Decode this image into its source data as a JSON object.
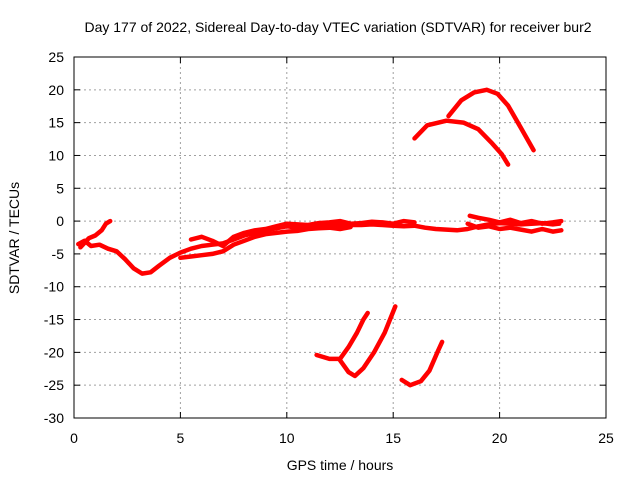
{
  "chart_data": {
    "type": "scatter",
    "title": "Day 177 of 2022, Sidereal Day-to-day VTEC variation (SDTVAR) for receiver bur2",
    "xlabel": "GPS time / hours",
    "ylabel": "SDTVAR / TECUs",
    "xlim": [
      0,
      25
    ],
    "ylim": [
      -30,
      25
    ],
    "xticks": [
      0,
      5,
      10,
      15,
      20,
      25
    ],
    "yticks": [
      25,
      20,
      15,
      10,
      5,
      0,
      -5,
      -10,
      -15,
      -20,
      -25,
      -30
    ],
    "grid": true,
    "legend": "none",
    "color": "#ff0000",
    "series": [
      {
        "name": "main-trace",
        "points": [
          [
            0.2,
            -3.5
          ],
          [
            0.5,
            -3.0
          ],
          [
            0.8,
            -3.8
          ],
          [
            1.2,
            -3.6
          ],
          [
            1.6,
            -4.2
          ],
          [
            2.0,
            -4.6
          ],
          [
            2.4,
            -5.8
          ],
          [
            2.8,
            -7.2
          ],
          [
            3.2,
            -8.0
          ],
          [
            3.6,
            -7.8
          ],
          [
            4.0,
            -6.8
          ],
          [
            4.5,
            -5.6
          ],
          [
            5.0,
            -4.8
          ],
          [
            5.5,
            -4.2
          ],
          [
            6.0,
            -3.8
          ],
          [
            6.5,
            -3.6
          ],
          [
            7.0,
            -3.4
          ],
          [
            7.5,
            -2.8
          ],
          [
            8.0,
            -2.2
          ],
          [
            8.5,
            -1.8
          ],
          [
            9.0,
            -1.4
          ],
          [
            9.5,
            -1.1
          ],
          [
            10.0,
            -0.8
          ],
          [
            10.5,
            -1.0
          ],
          [
            11.0,
            -0.9
          ],
          [
            11.5,
            -0.8
          ],
          [
            12.0,
            -0.7
          ],
          [
            12.5,
            -0.7
          ],
          [
            13.0,
            -0.6
          ],
          [
            13.5,
            -0.6
          ],
          [
            14.0,
            -0.5
          ],
          [
            14.5,
            -0.6
          ],
          [
            15.0,
            -0.7
          ],
          [
            15.5,
            -0.8
          ],
          [
            16.0,
            -0.7
          ],
          [
            16.5,
            -1.0
          ],
          [
            17.0,
            -1.2
          ],
          [
            17.5,
            -1.3
          ],
          [
            18.0,
            -1.4
          ],
          [
            18.5,
            -1.2
          ],
          [
            19.0,
            -0.8
          ],
          [
            19.5,
            -0.5
          ],
          [
            20.0,
            -0.3
          ],
          [
            20.5,
            -0.4
          ],
          [
            21.0,
            -0.5
          ],
          [
            21.5,
            -0.4
          ],
          [
            22.0,
            -0.3
          ],
          [
            22.5,
            -0.5
          ],
          [
            22.8,
            -0.4
          ]
        ]
      },
      {
        "name": "main-trace-lower",
        "points": [
          [
            5.0,
            -5.6
          ],
          [
            5.5,
            -5.4
          ],
          [
            6.0,
            -5.2
          ],
          [
            6.5,
            -5.0
          ],
          [
            7.0,
            -4.6
          ],
          [
            7.5,
            -3.6
          ],
          [
            8.0,
            -3.0
          ],
          [
            8.5,
            -2.4
          ],
          [
            9.0,
            -2.0
          ],
          [
            9.5,
            -1.8
          ],
          [
            10.0,
            -1.6
          ],
          [
            10.5,
            -1.5
          ],
          [
            11.0,
            -1.2
          ],
          [
            11.5,
            -1.1
          ],
          [
            12.0,
            -1.0
          ],
          [
            12.5,
            -1.2
          ],
          [
            13.0,
            -0.9
          ]
        ]
      },
      {
        "name": "main-trace-upper",
        "points": [
          [
            5.5,
            -2.8
          ],
          [
            6.0,
            -2.4
          ],
          [
            6.5,
            -3.0
          ],
          [
            7.0,
            -3.8
          ],
          [
            7.5,
            -2.4
          ],
          [
            8.0,
            -1.8
          ],
          [
            8.5,
            -1.4
          ],
          [
            9.0,
            -1.2
          ],
          [
            9.5,
            -0.8
          ],
          [
            10.0,
            -0.4
          ],
          [
            10.5,
            -0.5
          ],
          [
            11.0,
            -0.6
          ],
          [
            11.5,
            -0.3
          ],
          [
            12.0,
            -0.2
          ],
          [
            12.5,
            0.0
          ],
          [
            13.0,
            -0.4
          ],
          [
            13.5,
            -0.3
          ],
          [
            14.0,
            -0.1
          ],
          [
            14.5,
            -0.2
          ],
          [
            15.0,
            -0.4
          ],
          [
            15.5,
            0.0
          ],
          [
            16.0,
            -0.2
          ]
        ]
      },
      {
        "name": "end-trace-low",
        "points": [
          [
            18.5,
            -0.4
          ],
          [
            19.0,
            -1.0
          ],
          [
            19.5,
            -0.8
          ],
          [
            20.0,
            -1.2
          ],
          [
            20.5,
            -1.0
          ],
          [
            21.0,
            -1.3
          ],
          [
            21.5,
            -1.6
          ],
          [
            22.0,
            -1.2
          ],
          [
            22.5,
            -1.6
          ],
          [
            22.9,
            -1.4
          ]
        ]
      },
      {
        "name": "end-trace-high",
        "points": [
          [
            18.6,
            0.8
          ],
          [
            19.0,
            0.5
          ],
          [
            19.5,
            0.2
          ],
          [
            20.0,
            -0.2
          ],
          [
            20.5,
            0.2
          ],
          [
            21.0,
            -0.3
          ],
          [
            21.5,
            0.0
          ],
          [
            22.0,
            -0.4
          ],
          [
            22.5,
            -0.2
          ],
          [
            22.9,
            0.0
          ]
        ]
      },
      {
        "name": "start-spike",
        "points": [
          [
            0.3,
            -4.0
          ],
          [
            0.7,
            -2.6
          ],
          [
            1.0,
            -2.2
          ],
          [
            1.3,
            -1.4
          ],
          [
            1.5,
            -0.4
          ],
          [
            1.7,
            0.0
          ]
        ]
      },
      {
        "name": "arc-upper",
        "points": [
          [
            17.6,
            16.0
          ],
          [
            18.2,
            18.4
          ],
          [
            18.8,
            19.6
          ],
          [
            19.4,
            20.0
          ],
          [
            19.9,
            19.4
          ],
          [
            20.4,
            17.6
          ],
          [
            21.0,
            14.2
          ],
          [
            21.6,
            10.8
          ]
        ]
      },
      {
        "name": "arc-lower",
        "points": [
          [
            16.0,
            12.6
          ],
          [
            16.6,
            14.6
          ],
          [
            17.5,
            15.3
          ],
          [
            18.3,
            15.0
          ],
          [
            19.0,
            14.0
          ],
          [
            19.6,
            12.0
          ],
          [
            20.1,
            10.2
          ],
          [
            20.4,
            8.6
          ]
        ]
      },
      {
        "name": "neg-arc-1",
        "points": [
          [
            11.4,
            -20.4
          ],
          [
            12.0,
            -21.0
          ],
          [
            12.5,
            -21.0
          ],
          [
            12.9,
            -19.2
          ],
          [
            13.3,
            -17.0
          ],
          [
            13.6,
            -15.0
          ],
          [
            13.8,
            -14.0
          ]
        ]
      },
      {
        "name": "neg-arc-2",
        "points": [
          [
            12.5,
            -21.2
          ],
          [
            12.9,
            -23.0
          ],
          [
            13.2,
            -23.6
          ],
          [
            13.6,
            -22.4
          ],
          [
            14.1,
            -20.0
          ],
          [
            14.6,
            -17.0
          ],
          [
            15.1,
            -13.0
          ]
        ]
      },
      {
        "name": "neg-arc-3",
        "points": [
          [
            15.4,
            -24.2
          ],
          [
            15.8,
            -25.0
          ],
          [
            16.3,
            -24.4
          ],
          [
            16.7,
            -22.8
          ],
          [
            17.1,
            -19.8
          ],
          [
            17.3,
            -18.4
          ]
        ]
      }
    ]
  }
}
